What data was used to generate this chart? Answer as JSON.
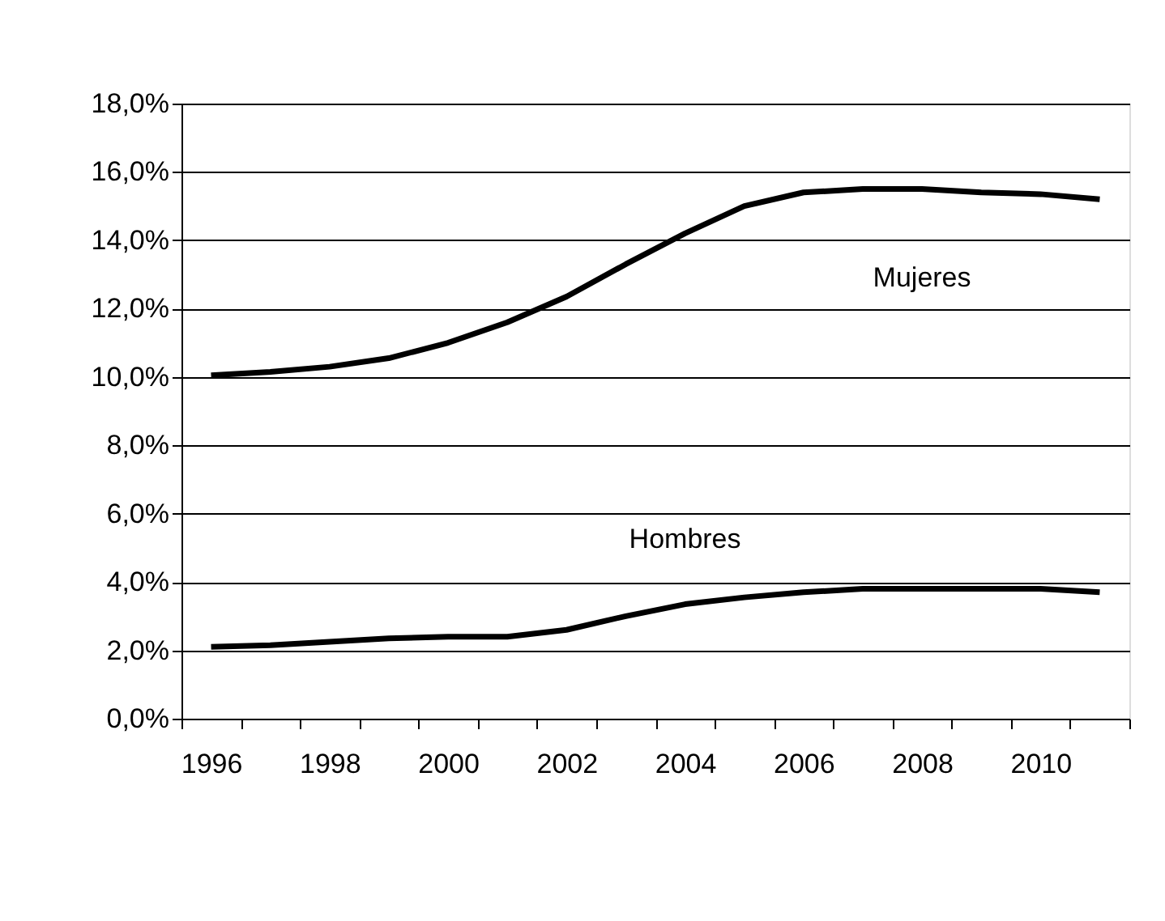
{
  "chart_data": {
    "type": "line",
    "categories": [
      "1996",
      null,
      "1998",
      null,
      "2000",
      null,
      "2002",
      null,
      "2004",
      null,
      "2006",
      null,
      "2008",
      null,
      "2010",
      null
    ],
    "series": [
      {
        "name": "Mujeres",
        "color": "#000000",
        "values": [
          10.05,
          10.15,
          10.3,
          10.55,
          11.0,
          11.6,
          12.35,
          13.3,
          14.2,
          15.0,
          15.4,
          15.5,
          15.5,
          15.4,
          15.35,
          15.2
        ]
      },
      {
        "name": "Hombres",
        "color": "#000000",
        "values": [
          2.1,
          2.15,
          2.25,
          2.35,
          2.4,
          2.4,
          2.6,
          3.0,
          3.35,
          3.55,
          3.7,
          3.8,
          3.8,
          3.8,
          3.8,
          3.7
        ]
      }
    ],
    "ylim": [
      0,
      18
    ],
    "yticks": [
      {
        "value": 0,
        "label": "0,0%"
      },
      {
        "value": 2,
        "label": "2,0%"
      },
      {
        "value": 4,
        "label": "4,0%"
      },
      {
        "value": 6,
        "label": "6,0%"
      },
      {
        "value": 8,
        "label": "8,0%"
      },
      {
        "value": 10,
        "label": "10,0%"
      },
      {
        "value": 12,
        "label": "12,0%"
      },
      {
        "value": 14,
        "label": "14,0%"
      },
      {
        "value": 16,
        "label": "16,0%"
      },
      {
        "value": 18,
        "label": "18,0%"
      }
    ],
    "grid": "y",
    "marker": "none",
    "line_style": "solid"
  }
}
